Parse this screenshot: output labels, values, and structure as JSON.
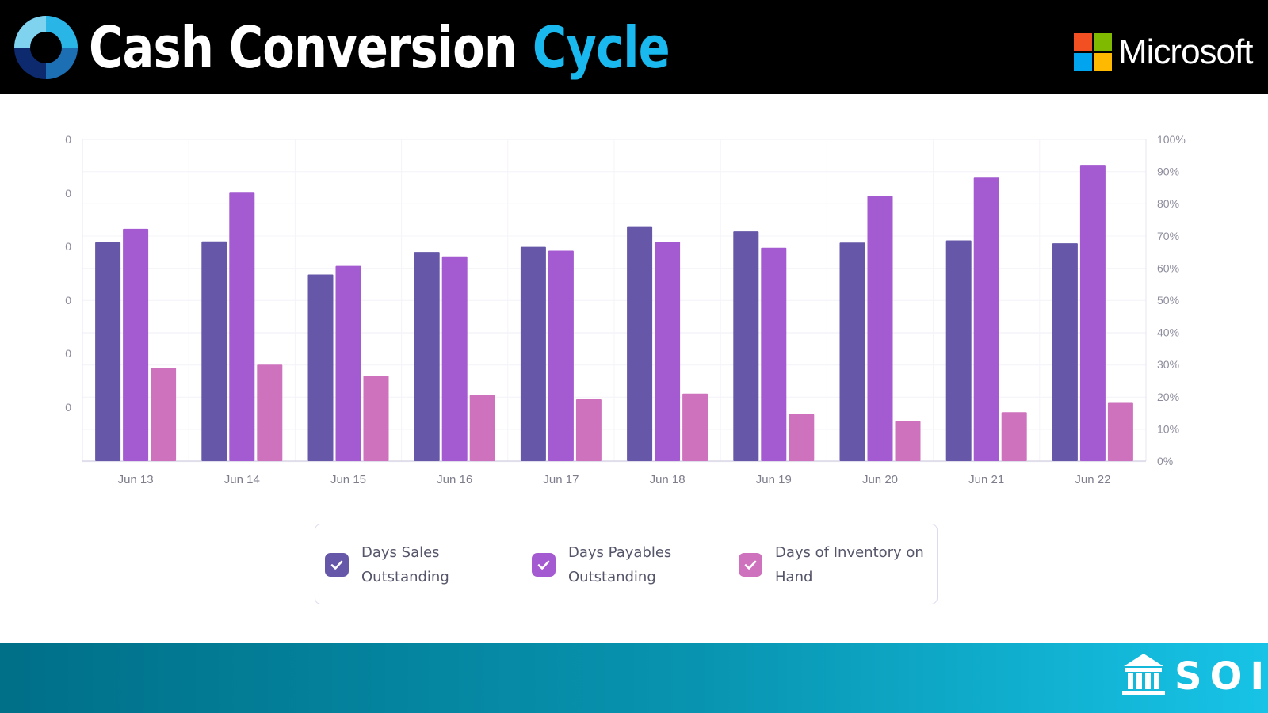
{
  "header": {
    "title_main": "Cash Conversion",
    "title_accent": "Cycle",
    "brand_name": "Microsoft",
    "logo_icon": "cycle-arrows-icon",
    "brand_icon": "microsoft-windows-icon"
  },
  "footer": {
    "brand_name": "SOIC",
    "brand_icon": "institution-building-icon"
  },
  "colors": {
    "dso": "#6657a8",
    "dpo": "#a45ad0",
    "dio": "#cf72be",
    "title_accent": "#19b8ee"
  },
  "chart_data": {
    "type": "bar",
    "categories": [
      "Jun 13",
      "Jun 14",
      "Jun 15",
      "Jun 16",
      "Jun 17",
      "Jun 18",
      "Jun 19",
      "Jun 20",
      "Jun 21",
      "Jun 22"
    ],
    "series": [
      {
        "name": "Days Sales Outstanding",
        "axis": "left",
        "values": [
          68,
          68.3,
          58,
          65,
          66.6,
          73,
          71.4,
          67.9,
          68.6,
          67.7
        ]
      },
      {
        "name": "Days Payables Outstanding",
        "axis": "left",
        "values": [
          72.2,
          83.7,
          60.7,
          63.6,
          65.4,
          68.2,
          66.3,
          82.4,
          88.1,
          92.1
        ]
      },
      {
        "name": "Days of Inventory on Hand",
        "axis": "left",
        "values": [
          29,
          30,
          26.5,
          20.7,
          19.2,
          21,
          14.6,
          12.4,
          15.2,
          18.1
        ]
      }
    ],
    "y_left_ticks": [
      "0",
      "0",
      "0",
      "0",
      "0",
      "0"
    ],
    "y_right_ticks": [
      "0%",
      "10%",
      "20%",
      "30%",
      "40%",
      "50%",
      "60%",
      "70%",
      "80%",
      "90%",
      "100%"
    ],
    "ylim_right": [
      0,
      100
    ],
    "grid": true,
    "legend_position": "bottom",
    "xlabel": "",
    "ylabel": ""
  }
}
